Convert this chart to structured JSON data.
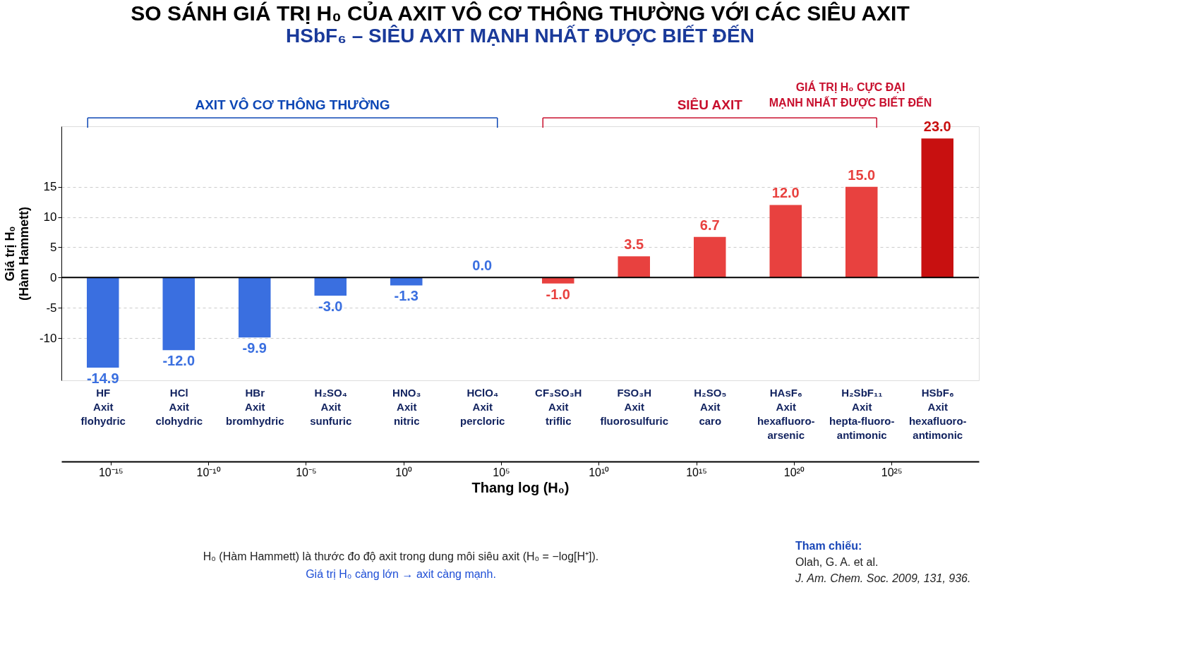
{
  "chart_data": {
    "type": "bar",
    "title": "SO SÁNH GIÁ TRỊ H₀ CỦA AXIT VÔ CƠ THÔNG THƯỜNG VỚI CÁC SIÊU AXIT",
    "subtitle": "HSbF₆ – SIÊU AXIT MẠNH NHẤT ĐƯỢC BIẾT ĐẾN",
    "ylabel": "Giá trị H₀\n(Hàm Hammett)",
    "categories": [
      "HF\nAxit\nflohydric",
      "HCl\nAxit\nclohydric",
      "HBr\nAxit\nbromhydric",
      "H₂SO₄\nAxit\nsunfuric",
      "HNO₃\nAxit\nnitric",
      "HClO₄\nAxit\npercloric",
      "CF₃SO₃H\nAxit\ntriflic",
      "FSO₃H\nAxit\nfluorosulfuric",
      "H₂SO₅\nAxit\ncaro",
      "HAsF₆\nAxit\nhexafluoro-\narsenic",
      "H₂SbF₁₁\nAxit\nhepta-fluoro-\nantimonic",
      "HSbF₆\nAxit\nhexafluoro-\nantimonic"
    ],
    "values": [
      -14.9,
      -12.0,
      -9.9,
      -3.0,
      -1.3,
      0.0,
      -1.0,
      3.5,
      6.7,
      12.0,
      15.0,
      23.0
    ],
    "value_labels": [
      "-14.9",
      "-12.0",
      "-9.9",
      "-3.0",
      "-1.3",
      "0.0",
      "-1.0",
      "3.5",
      "6.7",
      "12.0",
      "15.0",
      "23.0"
    ],
    "colors": [
      "#3a6fe0",
      "#3a6fe0",
      "#3a6fe0",
      "#3a6fe0",
      "#3a6fe0",
      "#3a6fe0",
      "#e8413f",
      "#e8413f",
      "#e8413f",
      "#e8413f",
      "#e8413f",
      "#c81010"
    ],
    "ylim": [
      -17,
      25
    ],
    "yticks": [
      -10,
      -5,
      0,
      5,
      10,
      15
    ],
    "grid": "y",
    "x2label": "Thang log (H₀)",
    "log": "x2",
    "x2lim": [
      3e-18,
      3e+29
    ],
    "x2ticks": [
      {
        "value": 1e-15,
        "label": "10⁻¹⁵"
      },
      {
        "value": 1e-10,
        "label": "10⁻¹⁰"
      },
      {
        "value": 1e-05,
        "label": "10⁻⁵"
      },
      {
        "value": 1,
        "label": "10⁰"
      },
      {
        "value": 100000.0,
        "label": "10⁵"
      },
      {
        "value": 10000000000.0,
        "label": "10¹⁰"
      },
      {
        "value": 1000000000000000.0,
        "label": "10¹⁵"
      },
      {
        "value": 1e+20,
        "label": "10²⁰"
      },
      {
        "value": 1e+25,
        "label": "10²⁵"
      }
    ],
    "ref_lines": [
      {
        "axis": "y",
        "value": 0,
        "color": "#000000"
      }
    ],
    "annotations": [
      "AXIT VÔ CƠ THÔNG THƯỜNG",
      "SIÊU AXIT",
      "GIÁ TRỊ H₀ CỰC ĐẠI\nMẠNH NHẤT ĐƯỢC BIẾT ĐẾN",
      "H₀ (Hàm Hammett) là thước đo độ axit trong dung môi siêu axit (H₀ = −log[H⁺]).",
      "Giá trị H₀ càng lớn → axit càng mạnh.",
      "Tham chiếu:",
      "Olah, G. A. et al.",
      "J. Am. Chem. Soc. 2009, 131, 936."
    ]
  }
}
